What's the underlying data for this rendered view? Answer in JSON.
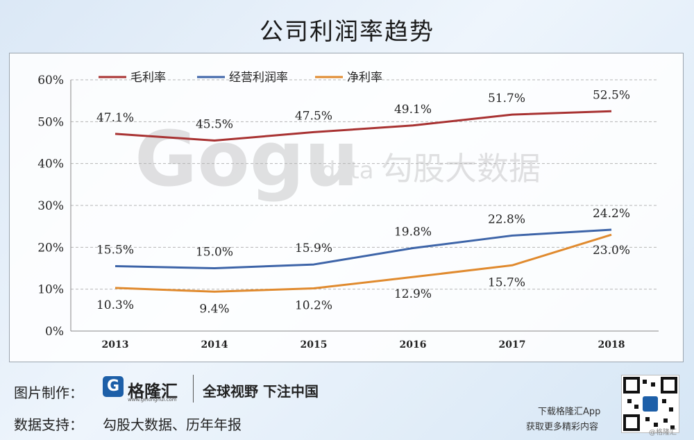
{
  "page": {
    "title": "公司利润率趋势"
  },
  "chart_data": {
    "type": "line",
    "categories": [
      "2013",
      "2014",
      "2015",
      "2016",
      "2017",
      "2018"
    ],
    "ylim": [
      0,
      60
    ],
    "yticks": [
      "0%",
      "10%",
      "20%",
      "30%",
      "40%",
      "50%",
      "60%"
    ],
    "grid": true,
    "legend_position": "top-left",
    "series": [
      {
        "name": "毛利率",
        "color": "#a83232",
        "values": [
          47.1,
          45.5,
          47.5,
          49.1,
          51.7,
          52.5
        ],
        "labels": [
          "47.1%",
          "45.5%",
          "47.5%",
          "49.1%",
          "51.7%",
          "52.5%"
        ]
      },
      {
        "name": "经营利润率",
        "color": "#3d64a8",
        "values": [
          15.5,
          15.0,
          15.9,
          19.8,
          22.8,
          24.2
        ],
        "labels": [
          "15.5%",
          "15.0%",
          "15.9%",
          "19.8%",
          "22.8%",
          "24.2%"
        ]
      },
      {
        "name": "净利率",
        "color": "#e08a2e",
        "values": [
          10.3,
          9.4,
          10.2,
          12.9,
          15.7,
          23.0
        ],
        "labels": [
          "10.3%",
          "9.4%",
          "10.2%",
          "12.9%",
          "15.7%",
          "23.0%"
        ]
      }
    ]
  },
  "watermark": {
    "logo_text": "Gogu",
    "data_text": "data",
    "cn_text": "勾股大数据"
  },
  "footer": {
    "made_by_label": "图片制作：",
    "brand_icon": "G",
    "brand_name": "格隆汇",
    "brand_url": "www.gelonghui.com",
    "slogan": "全球视野 下注中国",
    "data_source_label": "数据支持：",
    "data_source": "勾股大数据、历年年报",
    "download_text": "下载格隆汇App",
    "more_text": "获取更多精彩内容",
    "corner_tag": "@格隆汇"
  }
}
